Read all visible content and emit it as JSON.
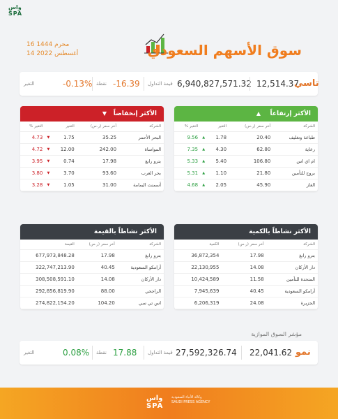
{
  "brand": {
    "logo_top": "واس SPA",
    "footer_logo": "واس SPA",
    "footer_name_ar": "وكالة الأنباء السعودية",
    "footer_name_en": "SAUDI PRESS AGENCY"
  },
  "date": {
    "hijri": "16 محرم 1444",
    "gregorian": "14 أغسطس 2022"
  },
  "title": "سوق الأسهم السعودي",
  "tasi": {
    "name": "تاسي",
    "value": "12,514.37",
    "turnover": "6,940,827,571.32",
    "turnover_label": "قيمة التداول",
    "points": "-16.39",
    "points_label": "نقطة",
    "change": "-0.13%",
    "change_label": "التغير"
  },
  "nomu": {
    "section_title": "مؤشر السوق الموازية",
    "name": "نمو",
    "value": "22,041.62",
    "turnover": "27,592,326.74",
    "turnover_label": "قيمة التداول",
    "points": "17.88",
    "points_label": "نقطة",
    "change": "0.08%",
    "change_label": "التغير"
  },
  "gainers": {
    "title": "الأكثر إرتفاعاً",
    "headers": [
      "الشركة",
      "آخر سعر (ر.س)",
      "التغير",
      "التغير %"
    ],
    "rows": [
      [
        "طباعة وتغليف",
        "20.40",
        "1.78",
        "9.56"
      ],
      [
        "رعاية",
        "62.80",
        "4.30",
        "7.35"
      ],
      [
        "ام اي اس",
        "106.80",
        "5.40",
        "5.33"
      ],
      [
        "بروج للتأمين",
        "21.80",
        "1.10",
        "5.31"
      ],
      [
        "الغاز",
        "45.90",
        "2.05",
        "4.68"
      ]
    ]
  },
  "losers": {
    "title": "الأكثر إنخفاضاً",
    "headers": [
      "الشركة",
      "آخر سعر (ر.س)",
      "التغير",
      "التغير %"
    ],
    "rows": [
      [
        "البحر الأحمر",
        "35.25",
        "1.75",
        "4.73"
      ],
      [
        "المواساة",
        "242.00",
        "12.00",
        "4.72"
      ],
      [
        "بترو رابغ",
        "17.98",
        "0.74",
        "3.95"
      ],
      [
        "بحر العرب",
        "93.60",
        "3.70",
        "3.80"
      ],
      [
        "أسمنت اليمامة",
        "31.00",
        "1.05",
        "3.28"
      ]
    ]
  },
  "by_volume": {
    "title": "الأكثر نشاطاً بالكمية",
    "headers": [
      "الشركة",
      "آخر سعر (ر.س)",
      "الكمية"
    ],
    "rows": [
      [
        "بترو رابغ",
        "17.98",
        "36,872,354"
      ],
      [
        "دار الأركان",
        "14.08",
        "22,130,955"
      ],
      [
        "المتحدة للتأمين",
        "11.58",
        "10,424,589"
      ],
      [
        "أرامكو السعودية",
        "40.45",
        "7,945,639"
      ],
      [
        "الجزيرة",
        "24.08",
        "6,206,319"
      ]
    ]
  },
  "by_value": {
    "title": "الأكثر نشاطاً بالقيمة",
    "headers": [
      "الشركة",
      "آخر سعر (ر.س)",
      "القيمة"
    ],
    "rows": [
      [
        "بترو رابغ",
        "17.98",
        "677,973,848.28"
      ],
      [
        "أرامكو السعودية",
        "40.45",
        "322,747,213.90"
      ],
      [
        "دار الأركان",
        "14.08",
        "308,508,591.10"
      ],
      [
        "الراجحي",
        "88.00",
        "292,856,819.90"
      ],
      [
        "اس تي سي",
        "104.20",
        "274,822,154.20"
      ]
    ]
  },
  "colors": {
    "orange": "#f07d1e",
    "green": "#5cb543",
    "red": "#cc2128",
    "dark": "#3b3f45"
  }
}
